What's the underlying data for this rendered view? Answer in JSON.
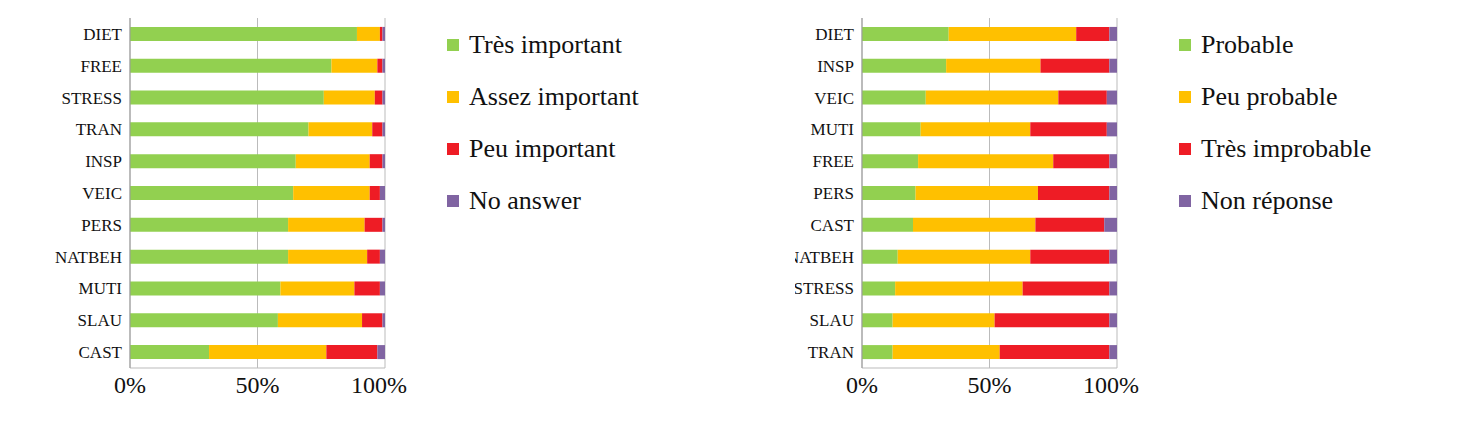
{
  "chart_data": [
    {
      "type": "bar",
      "orientation": "horizontal",
      "stacked": true,
      "grid": true,
      "legend": "right",
      "categories": [
        "DIET",
        "FREE",
        "STRESS",
        "TRAN",
        "INSP",
        "VEIC",
        "PERS",
        "NATBEH",
        "MUTI",
        "SLAU",
        "CAST"
      ],
      "series": [
        {
          "name": "Très important",
          "color": "#92d050",
          "values": [
            89,
            79,
            76,
            70,
            65,
            64,
            62,
            62,
            59,
            58,
            31
          ]
        },
        {
          "name": "Assez important",
          "color": "#ffc000",
          "values": [
            9,
            18,
            20,
            25,
            29,
            30,
            30,
            31,
            29,
            33,
            46
          ]
        },
        {
          "name": "Peu important",
          "color": "#ee1c25",
          "values": [
            1,
            2,
            3,
            4,
            5,
            4,
            7,
            5,
            10,
            8,
            20
          ]
        },
        {
          "name": "No answer",
          "color": "#8064a2",
          "values": [
            1,
            1,
            1,
            1,
            1,
            2,
            1,
            2,
            2,
            1,
            3
          ]
        }
      ],
      "xlim": [
        0,
        100
      ],
      "xticks": [
        {
          "value": 0,
          "label": "0%"
        },
        {
          "value": 50,
          "label": "50%"
        },
        {
          "value": 100,
          "label": "100%"
        }
      ]
    },
    {
      "type": "bar",
      "orientation": "horizontal",
      "stacked": true,
      "grid": true,
      "legend": "right",
      "categories": [
        "DIET",
        "INSP",
        "VEIC",
        "MUTI",
        "FREE",
        "PERS",
        "CAST",
        "NATBEH",
        "STRESS",
        "SLAU",
        "TRAN"
      ],
      "series": [
        {
          "name": "Probable",
          "color": "#92d050",
          "values": [
            34,
            33,
            25,
            23,
            22,
            21,
            20,
            14,
            13,
            12,
            12
          ]
        },
        {
          "name": "Peu probable",
          "color": "#ffc000",
          "values": [
            50,
            37,
            52,
            43,
            53,
            48,
            48,
            52,
            50,
            40,
            42
          ]
        },
        {
          "name": "Très improbable",
          "color": "#ee1c25",
          "values": [
            13,
            27,
            19,
            30,
            22,
            28,
            27,
            31,
            34,
            45,
            43
          ]
        },
        {
          "name": "Non réponse",
          "color": "#8064a2",
          "values": [
            3,
            3,
            4,
            4,
            3,
            3,
            5,
            3,
            3,
            3,
            3
          ]
        }
      ],
      "xlim": [
        0,
        100
      ],
      "xticks": [
        {
          "value": 0,
          "label": "0%"
        },
        {
          "value": 50,
          "label": "50%"
        },
        {
          "value": 100,
          "label": "100%"
        }
      ]
    }
  ]
}
